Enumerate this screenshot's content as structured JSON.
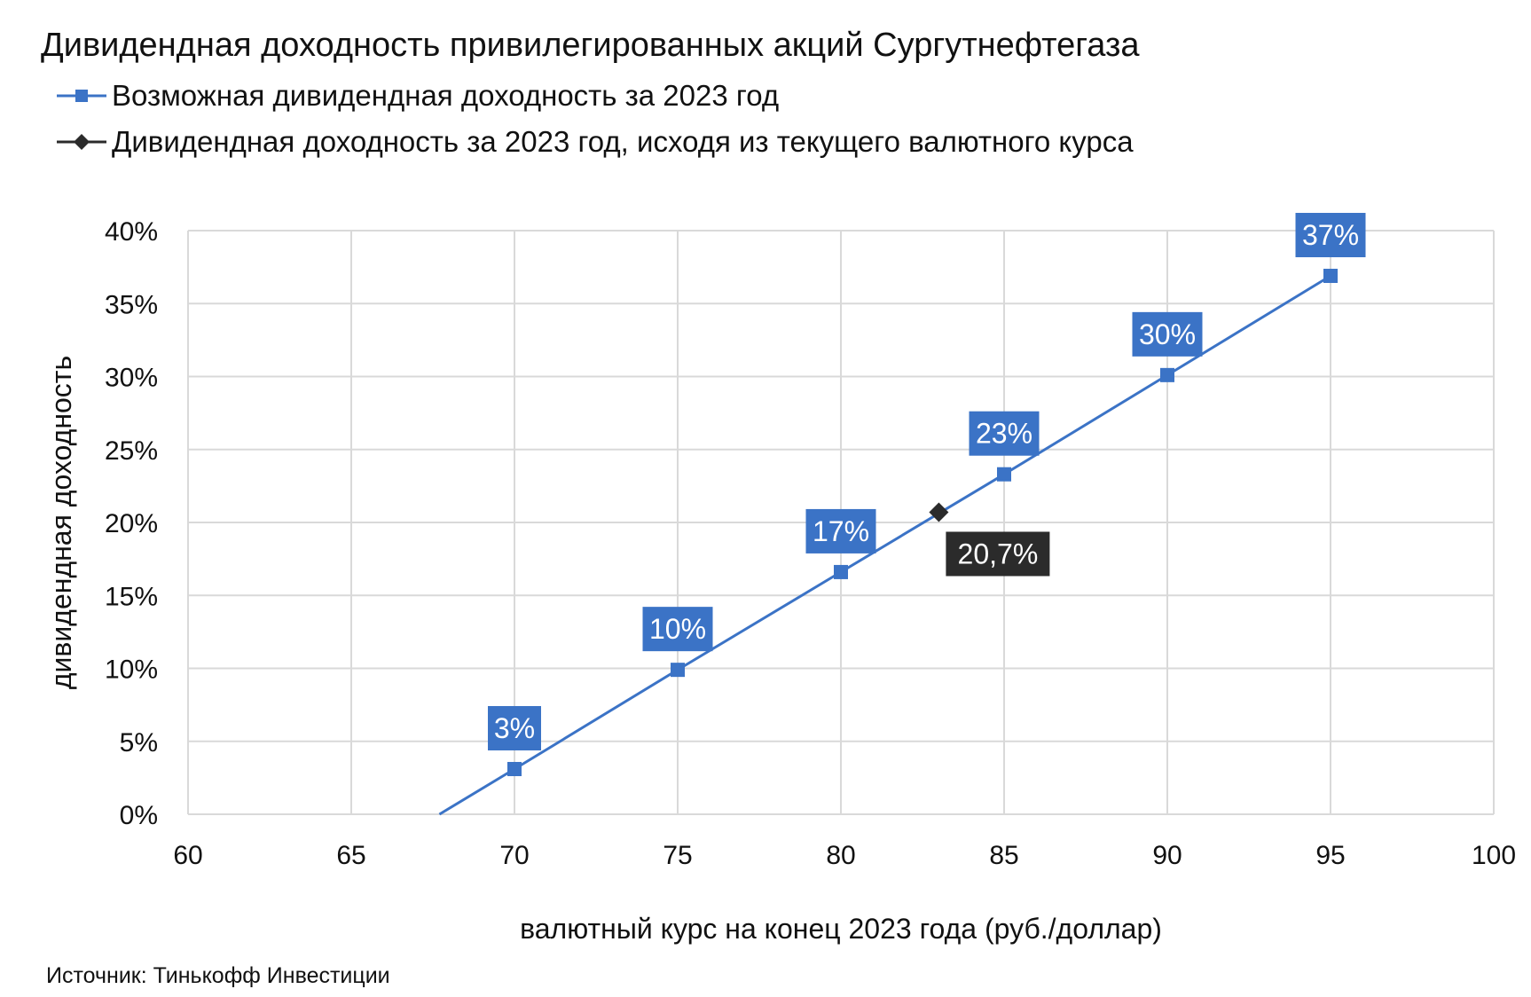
{
  "title": "Дивидендная доходность привилегированных акций Сургутнефтегаза",
  "source": "Источник: Тинькофф Инвестиции",
  "colors": {
    "series_blue": "#3b73c6",
    "marker_black": "#2b2b2b",
    "grid": "#d9d9d9",
    "label_text": "#ffffff"
  },
  "chart_data": {
    "type": "line",
    "xlabel": "валютный курс на конец 2023 года (руб./доллар)",
    "ylabel": "дивидендная доходность",
    "xlim": [
      60,
      100
    ],
    "ylim": [
      0,
      40
    ],
    "x_ticks": [
      "60",
      "65",
      "70",
      "75",
      "80",
      "85",
      "90",
      "95",
      "100"
    ],
    "y_ticks": [
      "0%",
      "5%",
      "10%",
      "15%",
      "20%",
      "25%",
      "30%",
      "35%",
      "40%"
    ],
    "grid": true,
    "legend_position": "top-left",
    "series": [
      {
        "name": "Возможная дивидендная доходность за 2023 год",
        "marker": "square",
        "color": "#3b73c6",
        "line_start": {
          "x": 67.7,
          "y": 0
        },
        "points": [
          {
            "x": 70,
            "y": 3.1,
            "label": "3%"
          },
          {
            "x": 75,
            "y": 9.9,
            "label": "10%"
          },
          {
            "x": 80,
            "y": 16.6,
            "label": "17%"
          },
          {
            "x": 85,
            "y": 23.3,
            "label": "23%"
          },
          {
            "x": 90,
            "y": 30.1,
            "label": "30%"
          },
          {
            "x": 95,
            "y": 36.9,
            "label": "37%"
          }
        ]
      },
      {
        "name": "Дивидендная доходность за 2023 год, исходя из текущего валютного курса",
        "marker": "diamond",
        "color": "#2b2b2b",
        "points": [
          {
            "x": 83,
            "y": 20.7,
            "label": "20,7%"
          }
        ]
      }
    ]
  }
}
